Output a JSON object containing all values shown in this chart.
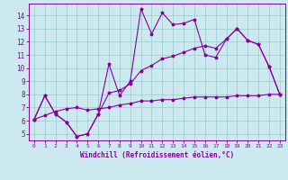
{
  "xlabel": "Windchill (Refroidissement éolien,°C)",
  "x_ticks": [
    0,
    1,
    2,
    3,
    4,
    5,
    6,
    7,
    8,
    9,
    10,
    11,
    12,
    13,
    14,
    15,
    16,
    17,
    18,
    19,
    20,
    21,
    22,
    23
  ],
  "y_ticks": [
    5,
    6,
    7,
    8,
    9,
    10,
    11,
    12,
    13,
    14
  ],
  "ylim": [
    4.5,
    14.9
  ],
  "xlim": [
    -0.5,
    23.5
  ],
  "bg_color": "#cce9f0",
  "line_color": "#880099",
  "grid_color": "#99cccc",
  "curve1_y": [
    6.1,
    7.9,
    6.5,
    5.9,
    4.8,
    5.0,
    6.5,
    10.3,
    7.9,
    9.0,
    14.5,
    12.6,
    14.2,
    13.3,
    13.4,
    13.7,
    11.0,
    10.8,
    12.2,
    13.0,
    12.1,
    11.8,
    10.1,
    8.0
  ],
  "curve2_y": [
    6.1,
    7.9,
    6.5,
    5.9,
    4.8,
    5.0,
    6.5,
    8.1,
    8.3,
    8.8,
    9.8,
    10.2,
    10.7,
    10.9,
    11.2,
    11.5,
    11.7,
    11.5,
    12.2,
    13.0,
    12.1,
    11.8,
    10.1,
    8.0
  ],
  "curve3_y": [
    6.1,
    6.4,
    6.7,
    6.9,
    7.0,
    6.8,
    6.9,
    7.0,
    7.2,
    7.3,
    7.5,
    7.5,
    7.6,
    7.6,
    7.7,
    7.8,
    7.8,
    7.8,
    7.8,
    7.9,
    7.9,
    7.9,
    8.0,
    8.0
  ],
  "marker_size": 2.5,
  "line_width": 0.8,
  "xlabel_fontsize": 5.5,
  "tick_fontsize_x": 4.5,
  "tick_fontsize_y": 5.5
}
